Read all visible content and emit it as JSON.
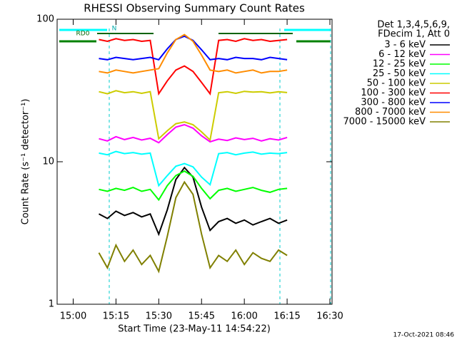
{
  "chart_data": {
    "type": "line",
    "title": "RHESSI Observing Summary Count Rates",
    "x_label": "Start Time (23-May-11 14:54:22)",
    "y_label": "Count Rate (s⁻¹ detector⁻¹)",
    "legend_header": [
      "Det 1,3,4,5,6,9,",
      "FDecim 1, Att 0"
    ],
    "footer": "17-Oct-2021 08:46",
    "annotations": [
      "RD0",
      "N"
    ],
    "log_y": true,
    "legend": "right",
    "xlim": [
      "14:54:22",
      "16:30:45"
    ],
    "xticks": [
      "15:00",
      "15:15",
      "15:30",
      "15:45",
      "16:00",
      "16:15",
      "16:30"
    ],
    "ylim": [
      1,
      100
    ],
    "yticks": [
      1,
      10,
      100
    ],
    "x": [
      "15:09",
      "15:12",
      "15:15",
      "15:18",
      "15:21",
      "15:24",
      "15:27",
      "15:30",
      "15:33",
      "15:36",
      "15:39",
      "15:42",
      "15:45",
      "15:48",
      "15:51",
      "15:54",
      "15:57",
      "16:00",
      "16:03",
      "16:06",
      "16:09",
      "16:12",
      "16:15"
    ],
    "series": [
      {
        "name": "3 - 6 keV",
        "color": "#000000",
        "values": [
          4.3,
          4.0,
          4.5,
          4.2,
          4.4,
          4.1,
          4.3,
          3.1,
          4.6,
          7.5,
          9.1,
          7.8,
          4.8,
          3.3,
          3.8,
          4.0,
          3.7,
          3.9,
          3.6,
          3.8,
          4.0,
          3.7,
          3.9
        ]
      },
      {
        "name": "6 - 12 keV",
        "color": "#ff00ff",
        "values": [
          14.5,
          14.0,
          15.0,
          14.3,
          14.8,
          14.2,
          14.6,
          13.6,
          15.5,
          17.5,
          18.2,
          17.2,
          15.2,
          13.8,
          14.4,
          14.1,
          14.7,
          14.3,
          14.6,
          14.0,
          14.5,
          14.2,
          14.8
        ]
      },
      {
        "name": "12 - 25 keV",
        "color": "#00ff00",
        "values": [
          6.4,
          6.2,
          6.5,
          6.3,
          6.6,
          6.2,
          6.4,
          5.4,
          6.8,
          8.0,
          8.6,
          7.9,
          6.5,
          5.5,
          6.3,
          6.5,
          6.2,
          6.4,
          6.6,
          6.3,
          6.1,
          6.4,
          6.5
        ]
      },
      {
        "name": "25 - 50 keV",
        "color": "#00ffff",
        "values": [
          11.5,
          11.2,
          11.8,
          11.4,
          11.6,
          11.3,
          11.5,
          6.8,
          8.0,
          9.3,
          9.7,
          9.2,
          7.8,
          6.9,
          11.4,
          11.6,
          11.2,
          11.5,
          11.7,
          11.3,
          11.5,
          11.4,
          11.6
        ]
      },
      {
        "name": "50 - 100 keV",
        "color": "#cccc00",
        "values": [
          31,
          30,
          31.5,
          30.5,
          31,
          30.2,
          31,
          14.5,
          16.5,
          18.5,
          19,
          18.2,
          16.2,
          14.2,
          30.5,
          31,
          30.2,
          31.2,
          30.8,
          31,
          30.4,
          31,
          30.6
        ]
      },
      {
        "name": "100 - 300 keV",
        "color": "#ff0000",
        "values": [
          72,
          70,
          73,
          71,
          72,
          70,
          71,
          30,
          37,
          44,
          47,
          43,
          36,
          30,
          71,
          72,
          70,
          73,
          71,
          72,
          70,
          71,
          72
        ]
      },
      {
        "name": "300 - 800 keV",
        "color": "#0000ff",
        "values": [
          53,
          52,
          54,
          53,
          52,
          53,
          54,
          52,
          62,
          72,
          76,
          71,
          61,
          52,
          53,
          52,
          54,
          53,
          53,
          52,
          54,
          53,
          52
        ]
      },
      {
        "name": "800 - 7000 keV",
        "color": "#ff8c00",
        "values": [
          43,
          42,
          44,
          43,
          42,
          43,
          44,
          45,
          58,
          72,
          78,
          70,
          56,
          44,
          43,
          44,
          42,
          43,
          44,
          42,
          43,
          43,
          44
        ]
      },
      {
        "name": "7000 - 15000 keV",
        "color": "#808000",
        "values": [
          2.3,
          1.8,
          2.6,
          2.0,
          2.4,
          1.9,
          2.2,
          1.7,
          3.0,
          5.6,
          7.2,
          5.9,
          3.1,
          1.8,
          2.2,
          2.0,
          2.4,
          1.9,
          2.3,
          2.1,
          2.0,
          2.4,
          2.2
        ]
      }
    ]
  }
}
